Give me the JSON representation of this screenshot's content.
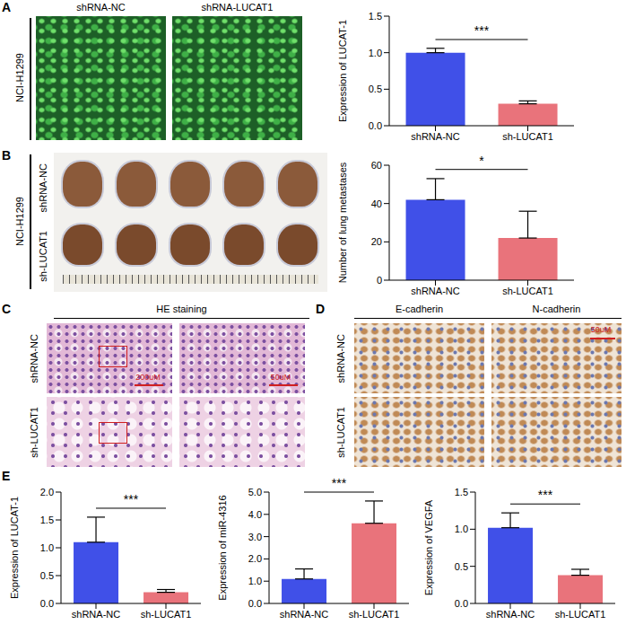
{
  "chart_data": [
    {
      "type": "bar",
      "categories": [
        "shRNA-NC",
        "sh-LUCAT1"
      ],
      "values": [
        1.0,
        0.3
      ],
      "errors": [
        0.06,
        0.04
      ],
      "colors": [
        "#4050e8",
        "#e9737b"
      ],
      "y_label": "Expression of LUCAT-1",
      "ylim": [
        0,
        1.5
      ],
      "yticks": [
        {
          "value": 0,
          "label": "0.0"
        },
        {
          "value": 0.5,
          "label": "0.5"
        },
        {
          "value": 1,
          "label": "1.0"
        },
        {
          "value": 1.5,
          "label": "1.5"
        }
      ],
      "annotation": "***"
    },
    {
      "type": "bar",
      "categories": [
        "shRNA-NC",
        "sh-LUCAT1"
      ],
      "values": [
        42,
        22
      ],
      "errors": [
        11,
        14
      ],
      "colors": [
        "#4050e8",
        "#e9737b"
      ],
      "y_label": "Number of lung metastases",
      "ylim": [
        0,
        60
      ],
      "yticks": [
        0,
        20,
        40,
        60
      ],
      "annotation": "*"
    },
    {
      "type": "bar",
      "categories": [
        "shRNA-NC",
        "sh-LUCAT1"
      ],
      "values": [
        1.1,
        0.2
      ],
      "errors": [
        0.45,
        0.05
      ],
      "colors": [
        "#4050e8",
        "#e9737b"
      ],
      "y_label": "Expression of LUCAT-1",
      "ylim": [
        0,
        2
      ],
      "yticks": [
        {
          "value": 0,
          "label": "0.0"
        },
        {
          "value": 0.5,
          "label": "0.5"
        },
        {
          "value": 1,
          "label": "1.0"
        },
        {
          "value": 1.5,
          "label": "1.5"
        },
        {
          "value": 2,
          "label": "2.0"
        }
      ],
      "annotation": "***"
    },
    {
      "type": "bar",
      "categories": [
        "shRNA-NC",
        "sh-LUCAT1"
      ],
      "values": [
        1.1,
        3.6
      ],
      "errors": [
        0.45,
        1.0
      ],
      "colors": [
        "#4050e8",
        "#e9737b"
      ],
      "y_label": "Expression of miR-4316",
      "ylim": [
        0,
        5
      ],
      "yticks": [
        {
          "value": 0,
          "label": "0.0"
        },
        {
          "value": 1,
          "label": "1.0"
        },
        {
          "value": 2,
          "label": "2.0"
        },
        {
          "value": 3,
          "label": "3.0"
        },
        {
          "value": 4,
          "label": "4.0"
        },
        {
          "value": 5,
          "label": "5.0"
        }
      ],
      "annotation": "***"
    },
    {
      "type": "bar",
      "categories": [
        "shRNA-NC",
        "sh-LUCAT1"
      ],
      "values": [
        1.02,
        0.38
      ],
      "errors": [
        0.2,
        0.08
      ],
      "colors": [
        "#4050e8",
        "#e9737b"
      ],
      "y_label": "Expression of VEGFA",
      "ylim": [
        0,
        1.5
      ],
      "yticks": [
        {
          "value": 0,
          "label": "0.0"
        },
        {
          "value": 0.5,
          "label": "0.5"
        },
        {
          "value": 1,
          "label": "1.0"
        },
        {
          "value": 1.5,
          "label": "1.5"
        }
      ],
      "annotation": "***"
    }
  ],
  "figure": {
    "panel_letters": [
      "A",
      "B",
      "C",
      "D",
      "E"
    ],
    "A": {
      "side_label": "NCI-H1299",
      "image_titles": [
        "shRNA-NC",
        "shRNA-LUCAT1"
      ]
    },
    "B": {
      "side_label": "NCI-H1299",
      "row_labels": [
        "shRNA-NC",
        "sh-LUCAT1"
      ]
    },
    "C": {
      "title": "HE staining",
      "row_labels": [
        "shRNA-NC",
        "sh-LUCAT1"
      ],
      "scale_bars": [
        "200uM",
        "50uM"
      ]
    },
    "D": {
      "column_titles": [
        "E-cadherin",
        "N-cadherin"
      ],
      "row_labels": [
        "shRNA-NC",
        "sh-LUCAT1"
      ],
      "scale_bar": "50uM"
    }
  }
}
